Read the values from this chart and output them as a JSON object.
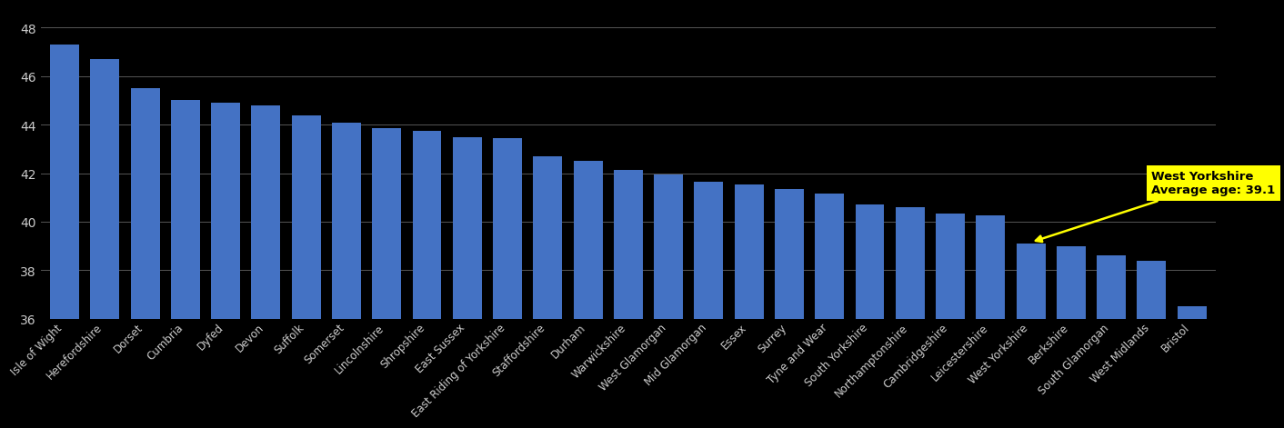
{
  "categories": [
    "Isle of Wight",
    "Herefordshire",
    "Dorset",
    "Cumbria",
    "Dyfed",
    "Devon",
    "Suffolk",
    "Somerset",
    "Lincolnshire",
    "Shropshire",
    "East Sussex",
    "East Riding of Yorkshire",
    "Staffordshire",
    "Durham",
    "Warwickshire",
    "West Glamorgan",
    "Mid Glamorgan",
    "Essex",
    "Surrey",
    "Tyne and Wear",
    "South Yorkshire",
    "Northamptonshire",
    "Cambridgeshire",
    "Leicestershire",
    "West Yorkshire",
    "Berkshire",
    "South Glamorgan",
    "West Midlands",
    "Bristol"
  ],
  "values": [
    47.3,
    46.7,
    45.5,
    45.0,
    44.9,
    44.8,
    44.4,
    44.1,
    43.85,
    43.75,
    43.5,
    43.45,
    42.7,
    42.5,
    42.15,
    41.95,
    41.65,
    41.55,
    41.35,
    41.15,
    40.7,
    40.6,
    40.35,
    40.25,
    39.1,
    39.0,
    38.6,
    38.4,
    36.5
  ],
  "highlight_index": 24,
  "highlight_label": "West Yorkshire",
  "highlight_value": 39.1,
  "bar_color": "#4472C4",
  "background_color": "#000000",
  "text_color": "#CCCCCC",
  "grid_color": "#555555",
  "annotation_bg_color": "#FFFF00",
  "annotation_text_line1": "West Yorkshire",
  "annotation_text_line2": "Average age: 39.1",
  "ylim_min": 36,
  "ylim_max": 48.8,
  "yticks": [
    36,
    38,
    40,
    42,
    44,
    46,
    48
  ]
}
